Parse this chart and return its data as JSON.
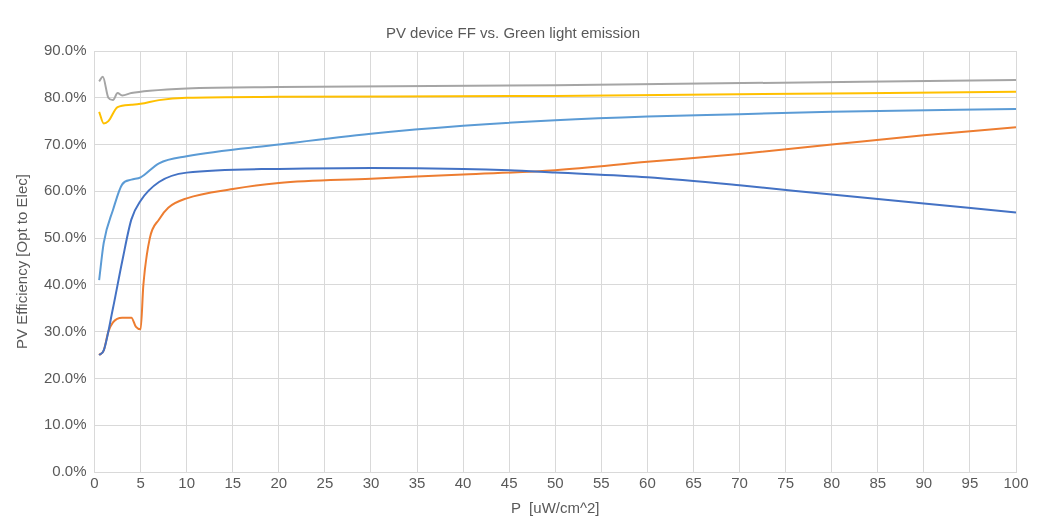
{
  "chart_data": {
    "type": "line",
    "title": "PV device FF vs. Green light emission",
    "xlabel": "P  [uW/cm^2]",
    "ylabel": "PV Efficiency [Opt to Elec]",
    "xlim": [
      0,
      100
    ],
    "xticks": [
      0,
      5,
      10,
      15,
      20,
      25,
      30,
      35,
      40,
      45,
      50,
      55,
      60,
      65,
      70,
      75,
      80,
      85,
      90,
      95,
      100
    ],
    "ylim": [
      0,
      90
    ],
    "yticks": [
      {
        "value": 0,
        "label": "0.0%"
      },
      {
        "value": 10,
        "label": "10.0%"
      },
      {
        "value": 20,
        "label": "20.0%"
      },
      {
        "value": 30,
        "label": "30.0%"
      },
      {
        "value": 40,
        "label": "40.0%"
      },
      {
        "value": 50,
        "label": "50.0%"
      },
      {
        "value": 60,
        "label": "60.0%"
      },
      {
        "value": 70,
        "label": "70.0%"
      },
      {
        "value": 80,
        "label": "80.0%"
      },
      {
        "value": 90,
        "label": "90.0%"
      }
    ],
    "grid": true,
    "legend": false,
    "marker": "none",
    "line_style": "solid",
    "series": [
      {
        "color": "#a5a5a5",
        "x": [
          0.5,
          0.9,
          1.5,
          2,
          2.5,
          3,
          4,
          6,
          10,
          20,
          50,
          100
        ],
        "values": [
          83.5,
          84.5,
          80,
          79.5,
          81,
          80.5,
          81,
          81.5,
          82,
          82.3,
          82.7,
          83.8
        ]
      },
      {
        "color": "#ffc000",
        "x": [
          0.5,
          1,
          1.5,
          2.5,
          4,
          5,
          7,
          10,
          20,
          50,
          100
        ],
        "values": [
          77,
          74.5,
          75,
          78,
          78.5,
          78.7,
          79.5,
          80,
          80.2,
          80.4,
          81.3
        ]
      },
      {
        "color": "#5b9bd5",
        "x": [
          0.5,
          1,
          2,
          3,
          4,
          5,
          7,
          10,
          20,
          30,
          40,
          50,
          60,
          70,
          80,
          100
        ],
        "values": [
          41,
          49,
          56,
          61.5,
          62.5,
          63,
          66,
          67.5,
          70,
          72.3,
          74,
          75.2,
          76,
          76.5,
          77,
          77.6
        ]
      },
      {
        "color": "#4472c4",
        "x": [
          0.5,
          1,
          2,
          3,
          4,
          5,
          7,
          10,
          20,
          30,
          40,
          45,
          50,
          60,
          70,
          80,
          90,
          100
        ],
        "values": [
          25,
          26,
          35,
          45,
          54,
          58,
          62,
          64,
          64.8,
          65,
          64.8,
          64.5,
          64,
          63,
          61.3,
          59.3,
          57.4,
          55.5
        ]
      },
      {
        "color": "#ed7d31",
        "x": [
          0.5,
          1,
          1.5,
          2,
          3,
          4,
          4.5,
          5,
          5.3,
          6,
          7,
          8,
          10,
          15,
          20,
          30,
          40,
          50,
          60,
          70,
          80,
          90,
          100
        ],
        "values": [
          25,
          26,
          30,
          32,
          33,
          33,
          31,
          30.5,
          40,
          50,
          54,
          56.5,
          58.5,
          60.5,
          61.8,
          62.7,
          63.6,
          64.5,
          66.3,
          68,
          70,
          72,
          73.7
        ]
      }
    ]
  }
}
